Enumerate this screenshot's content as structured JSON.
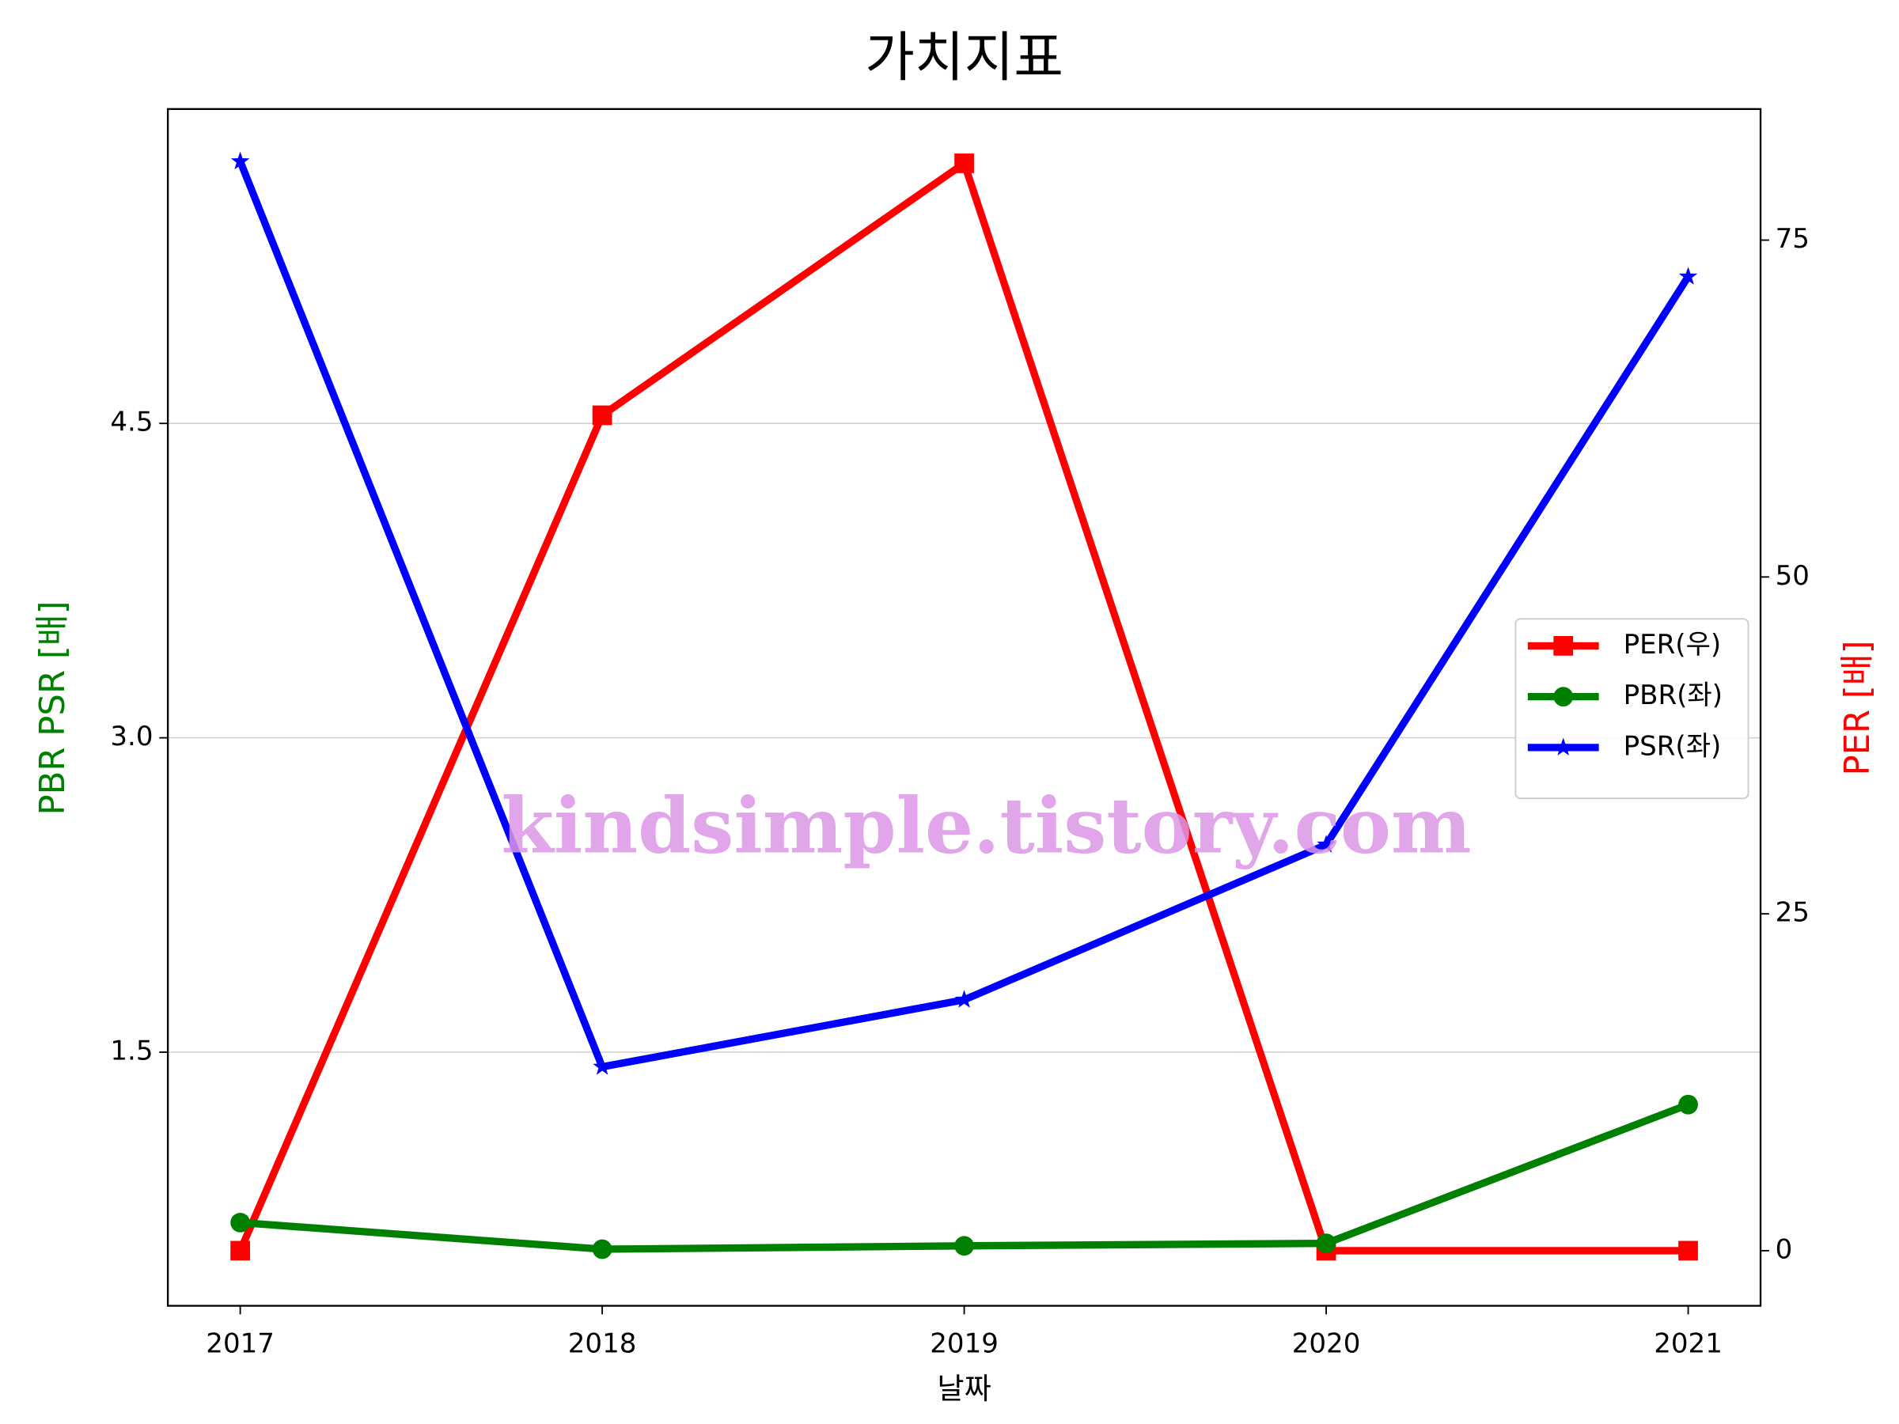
{
  "chart_data": {
    "type": "line",
    "title": "가치지표",
    "xlabel": "날짜",
    "ylabel": "PBR PSR [배]",
    "y2label": "PER [배]",
    "annotation": "kindsimple.tistory.com",
    "x": [
      2017,
      2018,
      2019,
      2020,
      2021
    ],
    "xlim": [
      2016.8,
      2021.2
    ],
    "xticks": [
      2017,
      2018,
      2019,
      2020,
      2021
    ],
    "ylim": [
      0.29,
      6.0
    ],
    "yticks": [
      1.5,
      {
        "value": 3,
        "label": "3.0"
      },
      4.5
    ],
    "y2lim": [
      -4.09,
      84.73
    ],
    "y2ticks": [
      0,
      25,
      50,
      75
    ],
    "grid": true,
    "legend": "center right",
    "series": [
      {
        "name": "PER(우)",
        "color": "#ff0000",
        "marker": "square",
        "axis": "y2",
        "values": [
          0,
          62.0,
          80.7,
          0,
          0
        ]
      },
      {
        "name": "PBR(좌)",
        "color": "#008000",
        "marker": "circle",
        "values": [
          0.687,
          0.56,
          0.576,
          0.588,
          1.25
        ]
      },
      {
        "name": "PSR(좌)",
        "color": "#0000ff",
        "marker": "star",
        "values": [
          5.75,
          1.43,
          1.75,
          2.49,
          5.2
        ]
      }
    ]
  }
}
